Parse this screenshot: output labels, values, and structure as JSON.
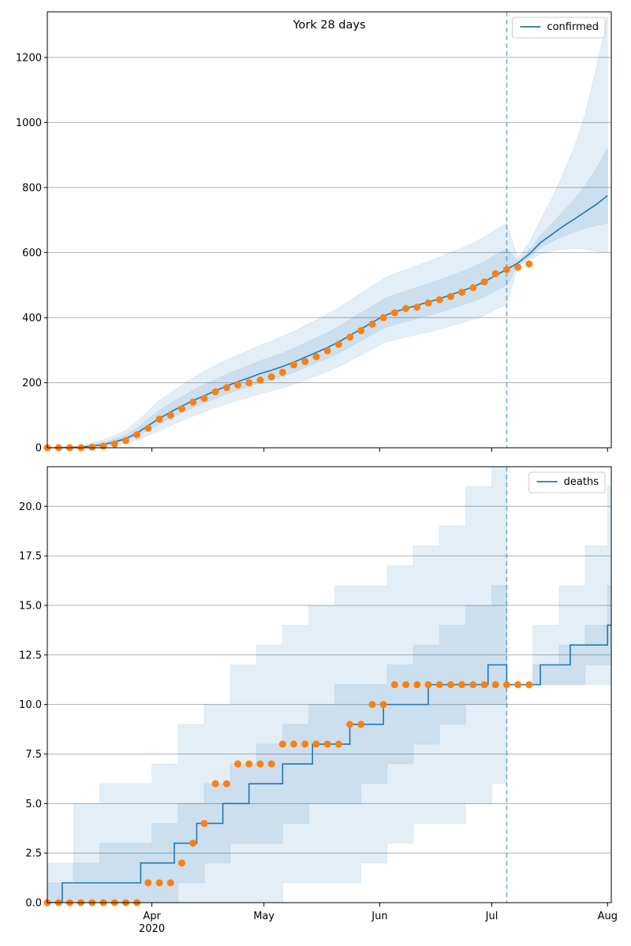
{
  "chart_data": [
    {
      "type": "line",
      "title": "York 28 days",
      "xlim": [
        "2020-03-04",
        "2020-08-02"
      ],
      "xticks": [
        "2020-04-01",
        "2020-05-01",
        "2020-06-01",
        "2020-07-01",
        "2020-08-01"
      ],
      "ylim": [
        0,
        1340
      ],
      "yticks": [
        0,
        200,
        400,
        600,
        800,
        1000,
        1200
      ],
      "grid": true,
      "legend": "upper right",
      "vline": {
        "x": "2020-07-05",
        "color": "#1f77b4"
      },
      "x": [
        "2020-03-04",
        "2020-03-07",
        "2020-03-10",
        "2020-03-13",
        "2020-03-16",
        "2020-03-19",
        "2020-03-22",
        "2020-03-25",
        "2020-03-28",
        "2020-03-31",
        "2020-04-03",
        "2020-04-06",
        "2020-04-09",
        "2020-04-12",
        "2020-04-15",
        "2020-04-18",
        "2020-04-21",
        "2020-04-24",
        "2020-04-27",
        "2020-04-30",
        "2020-05-03",
        "2020-05-06",
        "2020-05-09",
        "2020-05-12",
        "2020-05-15",
        "2020-05-18",
        "2020-05-21",
        "2020-05-24",
        "2020-05-27",
        "2020-05-30",
        "2020-06-02",
        "2020-06-05",
        "2020-06-08",
        "2020-06-11",
        "2020-06-14",
        "2020-06-17",
        "2020-06-20",
        "2020-06-23",
        "2020-06-26",
        "2020-06-29",
        "2020-07-02",
        "2020-07-05",
        "2020-07-08",
        "2020-07-11",
        "2020-07-14",
        "2020-07-17",
        "2020-07-20",
        "2020-07-23",
        "2020-07-26",
        "2020-07-29",
        "2020-08-01"
      ],
      "bands": [
        {
          "color": "#1f77b4",
          "lower": [
            0,
            0,
            0,
            0,
            0,
            2,
            6,
            12,
            23,
            38,
            52,
            68,
            83,
            97,
            110,
            123,
            135,
            146,
            155,
            166,
            174,
            184,
            195,
            208,
            221,
            234,
            249,
            267,
            285,
            303,
            321,
            332,
            340,
            348,
            356,
            364,
            374,
            384,
            395,
            407,
            425,
            440,
            558,
            575,
            595,
            605,
            610,
            612,
            610,
            603,
            600
          ],
          "upper": [
            0,
            0,
            3,
            7,
            15,
            25,
            38,
            53,
            80,
            113,
            145,
            170,
            193,
            215,
            235,
            253,
            270,
            285,
            300,
            316,
            328,
            342,
            358,
            376,
            393,
            411,
            430,
            453,
            475,
            497,
            520,
            536,
            548,
            560,
            573,
            586,
            600,
            614,
            630,
            648,
            670,
            690,
            583,
            630,
            700,
            765,
            840,
            922,
            1025,
            1168,
            1330
          ]
        },
        {
          "color": "#1f77b4",
          "lower": [
            0,
            0,
            1,
            1,
            3,
            6,
            13,
            21,
            35,
            54,
            73,
            91,
            108,
            123,
            137,
            152,
            165,
            177,
            188,
            200,
            209,
            220,
            232,
            246,
            261,
            275,
            291,
            310,
            329,
            348,
            367,
            379,
            388,
            397,
            407,
            416,
            427,
            438,
            450,
            464,
            483,
            499,
            563,
            585,
            615,
            633,
            650,
            662,
            675,
            683,
            690
          ],
          "upper": [
            0,
            0,
            2,
            4,
            10,
            17,
            27,
            39,
            61,
            88,
            115,
            137,
            157,
            177,
            194,
            210,
            226,
            240,
            253,
            268,
            279,
            291,
            306,
            322,
            338,
            354,
            372,
            394,
            415,
            435,
            457,
            471,
            482,
            493,
            504,
            516,
            529,
            541,
            556,
            572,
            593,
            612,
            573,
            607,
            652,
            687,
            725,
            762,
            805,
            858,
            920
          ]
        }
      ],
      "series": [
        {
          "name": "confirmed",
          "color": "#1f77b4",
          "values": [
            0,
            0,
            1,
            2,
            5,
            10,
            18,
            28,
            45,
            68,
            90,
            110,
            128,
            145,
            160,
            175,
            190,
            203,
            215,
            228,
            238,
            250,
            263,
            278,
            293,
            308,
            325,
            345,
            365,
            385,
            405,
            418,
            428,
            438,
            448,
            458,
            470,
            482,
            495,
            510,
            530,
            548,
            568,
            595,
            630,
            655,
            680,
            702,
            725,
            748,
            775
          ]
        }
      ],
      "observed": {
        "color": "#ff7f0e",
        "values": [
          0,
          0,
          0,
          0,
          2,
          5,
          12,
          22,
          40,
          60,
          88,
          100,
          120,
          140,
          152,
          172,
          185,
          193,
          200,
          208,
          218,
          232,
          255,
          265,
          280,
          298,
          318,
          340,
          360,
          380,
          400,
          415,
          428,
          432,
          445,
          455,
          465,
          478,
          492,
          510,
          535,
          548,
          555,
          565,
          null,
          null,
          null,
          null,
          null,
          null,
          null
        ]
      }
    },
    {
      "type": "step",
      "xlim": [
        "2020-03-04",
        "2020-08-02"
      ],
      "xticks": [
        {
          "value": "2020-04-01",
          "label": "Apr"
        },
        {
          "value": "2020-05-01",
          "label": "May"
        },
        {
          "value": "2020-06-01",
          "label": "Jun"
        },
        {
          "value": "2020-07-01",
          "label": "Jul"
        },
        {
          "value": "2020-08-01",
          "label": "Aug"
        }
      ],
      "year_label": "2020",
      "ylim": [
        0,
        22
      ],
      "yticks": [
        {
          "value": 0,
          "label": "0.0"
        },
        {
          "value": 2.5,
          "label": "2.5"
        },
        {
          "value": 5,
          "label": "5.0"
        },
        {
          "value": 7.5,
          "label": "7.5"
        },
        {
          "value": 10,
          "label": "10.0"
        },
        {
          "value": 12.5,
          "label": "12.5"
        },
        {
          "value": 15,
          "label": "15.0"
        },
        {
          "value": 17.5,
          "label": "17.5"
        },
        {
          "value": 20,
          "label": "20.0"
        }
      ],
      "grid": true,
      "legend": "upper right",
      "vline": {
        "x": "2020-07-05",
        "color": "#1f77b4"
      },
      "x": [
        "2020-03-04",
        "2020-03-08",
        "2020-03-29",
        "2020-04-07",
        "2020-04-13",
        "2020-04-20",
        "2020-04-27",
        "2020-05-06",
        "2020-05-14",
        "2020-05-24",
        "2020-06-02",
        "2020-06-14",
        "2020-06-30",
        "2020-07-05",
        "2020-07-14",
        "2020-07-22",
        "2020-08-01"
      ],
      "bands": [
        {
          "color": "#1f77b4",
          "x": [
            "2020-03-04",
            "2020-03-11",
            "2020-03-18",
            "2020-03-25",
            "2020-04-01",
            "2020-04-08",
            "2020-04-15",
            "2020-04-22",
            "2020-04-29",
            "2020-05-06",
            "2020-05-13",
            "2020-05-20",
            "2020-05-27",
            "2020-06-03",
            "2020-06-10",
            "2020-06-17",
            "2020-06-24",
            "2020-07-01",
            "2020-07-05",
            "2020-07-12",
            "2020-07-19",
            "2020-07-26",
            "2020-08-01"
          ],
          "lower": [
            0,
            0,
            0,
            0,
            0,
            0,
            0,
            0,
            0,
            1,
            1,
            1,
            2,
            3,
            4,
            4,
            5,
            6,
            11,
            11,
            11,
            11,
            11
          ],
          "upper": [
            2,
            5,
            6,
            6,
            7,
            9,
            10,
            12,
            13,
            14,
            15,
            16,
            16,
            17,
            18,
            19,
            21,
            22,
            11,
            14,
            16,
            18,
            21
          ]
        },
        {
          "color": "#1f77b4",
          "x": [
            "2020-03-04",
            "2020-03-11",
            "2020-03-18",
            "2020-03-25",
            "2020-04-01",
            "2020-04-08",
            "2020-04-15",
            "2020-04-22",
            "2020-04-29",
            "2020-05-06",
            "2020-05-13",
            "2020-05-20",
            "2020-05-27",
            "2020-06-03",
            "2020-06-10",
            "2020-06-17",
            "2020-06-24",
            "2020-07-01",
            "2020-07-05",
            "2020-07-12",
            "2020-07-19",
            "2020-07-26",
            "2020-08-01"
          ],
          "lower": [
            0,
            0,
            0,
            0,
            0,
            1,
            2,
            3,
            3,
            4,
            5,
            5,
            6,
            7,
            8,
            9,
            10,
            10,
            11,
            11,
            11,
            12,
            12
          ],
          "upper": [
            1,
            2,
            3,
            3,
            4,
            5,
            6,
            7,
            8,
            9,
            10,
            11,
            11,
            12,
            13,
            14,
            15,
            16,
            11,
            12,
            13,
            14,
            16
          ]
        }
      ],
      "series": [
        {
          "name": "deaths",
          "color": "#1f77b4",
          "values": [
            0,
            1,
            2,
            3,
            4,
            5,
            6,
            7,
            8,
            9,
            10,
            11,
            12,
            11,
            12,
            13,
            14
          ]
        }
      ],
      "observed": {
        "color": "#ff7f0e",
        "x": [
          "2020-03-04",
          "2020-03-07",
          "2020-03-10",
          "2020-03-13",
          "2020-03-16",
          "2020-03-19",
          "2020-03-22",
          "2020-03-25",
          "2020-03-28",
          "2020-03-31",
          "2020-04-03",
          "2020-04-06",
          "2020-04-09",
          "2020-04-12",
          "2020-04-15",
          "2020-04-18",
          "2020-04-21",
          "2020-04-24",
          "2020-04-27",
          "2020-04-30",
          "2020-05-03",
          "2020-05-06",
          "2020-05-09",
          "2020-05-12",
          "2020-05-15",
          "2020-05-18",
          "2020-05-21",
          "2020-05-24",
          "2020-05-27",
          "2020-05-30",
          "2020-06-02",
          "2020-06-05",
          "2020-06-08",
          "2020-06-11",
          "2020-06-14",
          "2020-06-17",
          "2020-06-20",
          "2020-06-23",
          "2020-06-26",
          "2020-06-29",
          "2020-07-02",
          "2020-07-05",
          "2020-07-08",
          "2020-07-11"
        ],
        "values": [
          0,
          0,
          0,
          0,
          0,
          0,
          0,
          0,
          0,
          1,
          1,
          1,
          2,
          3,
          4,
          6,
          6,
          7,
          7,
          7,
          7,
          8,
          8,
          8,
          8,
          8,
          8,
          9,
          9,
          10,
          10,
          11,
          11,
          11,
          11,
          11,
          11,
          11,
          11,
          11,
          11,
          11,
          11,
          11
        ]
      }
    }
  ]
}
